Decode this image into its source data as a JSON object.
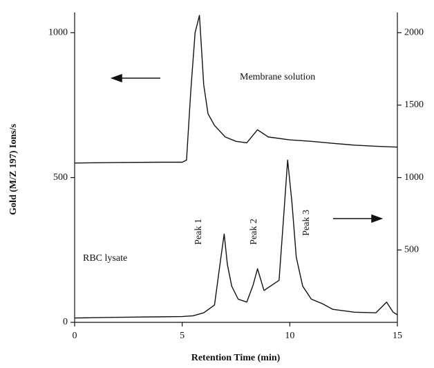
{
  "chart_data": {
    "type": "line",
    "xlabel": "Retention Time (min)",
    "ylabel": "Gold (M/Z 197)  Ions/s",
    "xlim": [
      0,
      15
    ],
    "xticks": [
      0,
      5,
      10,
      15
    ],
    "ylim": [
      0,
      1070
    ],
    "yticks": [
      0,
      500,
      1000
    ],
    "y2lim": [
      0,
      2140
    ],
    "y2ticks": [
      500,
      1000,
      1500,
      2000
    ],
    "series": [
      {
        "name": "Membrane solution",
        "color": "#111111",
        "x": [
          0,
          2,
          4,
          5,
          5.2,
          5.4,
          5.6,
          5.8,
          6.0,
          6.2,
          6.5,
          7,
          7.5,
          8,
          8.5,
          9,
          10,
          11,
          12,
          13,
          14,
          15
        ],
        "values": [
          550,
          552,
          553,
          553,
          560,
          800,
          1000,
          1060,
          820,
          720,
          680,
          640,
          625,
          620,
          665,
          640,
          630,
          625,
          618,
          612,
          608,
          605
        ]
      },
      {
        "name": "RBC lysate",
        "color": "#111111",
        "axis": "y2",
        "x": [
          0,
          2,
          4,
          5,
          5.5,
          6,
          6.5,
          6.8,
          6.95,
          7.1,
          7.3,
          7.6,
          8,
          8.3,
          8.5,
          8.8,
          9.2,
          9.5,
          9.7,
          9.9,
          10.1,
          10.3,
          10.6,
          11,
          11.5,
          12,
          13,
          14,
          14.5,
          14.8,
          15
        ],
        "values": [
          30,
          35,
          38,
          40,
          45,
          66,
          120,
          450,
          610,
          400,
          250,
          160,
          140,
          260,
          370,
          220,
          260,
          290,
          700,
          1120,
          830,
          450,
          250,
          160,
          130,
          90,
          70,
          66,
          140,
          70,
          52
        ]
      }
    ],
    "annotations": [
      "Peak 1",
      "Peak 2",
      "Peak 3"
    ]
  }
}
